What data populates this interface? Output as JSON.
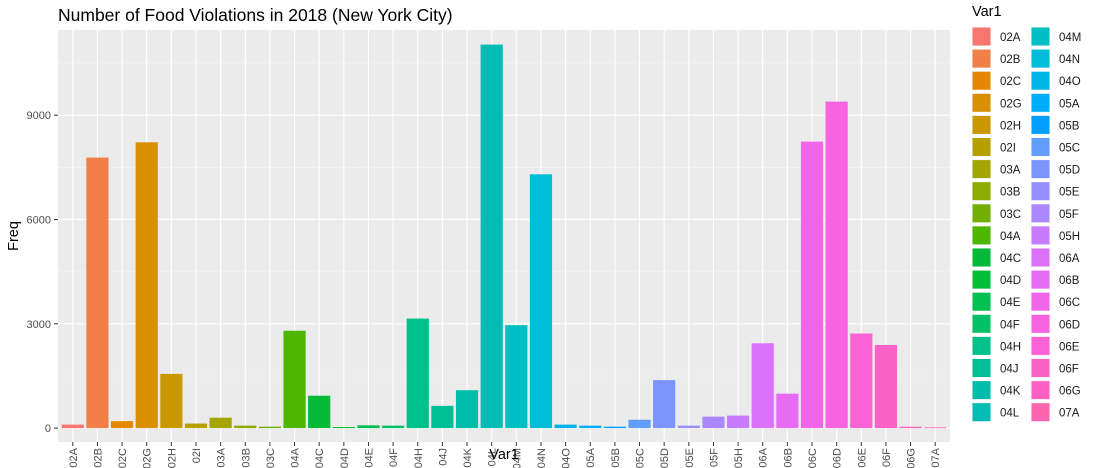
{
  "chart_data": {
    "type": "bar",
    "title": "Number of Food Violations in 2018 (New York City)",
    "xlabel": "Var1",
    "ylabel": "Freq",
    "ylim": [
      -400,
      11450
    ],
    "yticks": [
      0,
      3000,
      6000,
      9000
    ],
    "grid": true,
    "legend": {
      "title": "Var1",
      "position": "right",
      "columns": 2
    },
    "categories": [
      "02A",
      "02B",
      "02C",
      "02G",
      "02H",
      "02I",
      "03A",
      "03B",
      "03C",
      "04A",
      "04C",
      "04D",
      "04E",
      "04F",
      "04H",
      "04J",
      "04K",
      "04L",
      "04M",
      "04N",
      "04O",
      "05A",
      "05B",
      "05C",
      "05D",
      "05E",
      "05F",
      "05H",
      "06A",
      "06B",
      "06C",
      "06D",
      "06E",
      "06F",
      "06G",
      "07A"
    ],
    "values": [
      100,
      7780,
      200,
      8220,
      1560,
      130,
      300,
      70,
      40,
      2800,
      930,
      30,
      80,
      70,
      3150,
      640,
      1090,
      11030,
      2960,
      7300,
      100,
      70,
      40,
      240,
      1380,
      70,
      330,
      360,
      2440,
      990,
      8240,
      9390,
      2720,
      2390,
      40,
      20
    ],
    "colors": [
      "#F8766D",
      "#F07F48",
      "#E58700",
      "#D89000",
      "#C99800",
      "#B79F00",
      "#A3A500",
      "#8DAB00",
      "#72B000",
      "#4FB600",
      "#00BA38",
      "#00BE38",
      "#00C04F",
      "#00C165",
      "#00C08B",
      "#00BF96",
      "#00BDAA",
      "#00BCB4",
      "#00BFC4",
      "#00BCD8",
      "#00B5E6",
      "#00ACFC",
      "#009FFF",
      "#619CFF",
      "#7C94FF",
      "#9590FF",
      "#AC88FF",
      "#C77CFF",
      "#DC71FA",
      "#E76BF3",
      "#F165E9",
      "#F763E0",
      "#FA62D6",
      "#FC61C7",
      "#FF61C3",
      "#FF64B0"
    ]
  }
}
